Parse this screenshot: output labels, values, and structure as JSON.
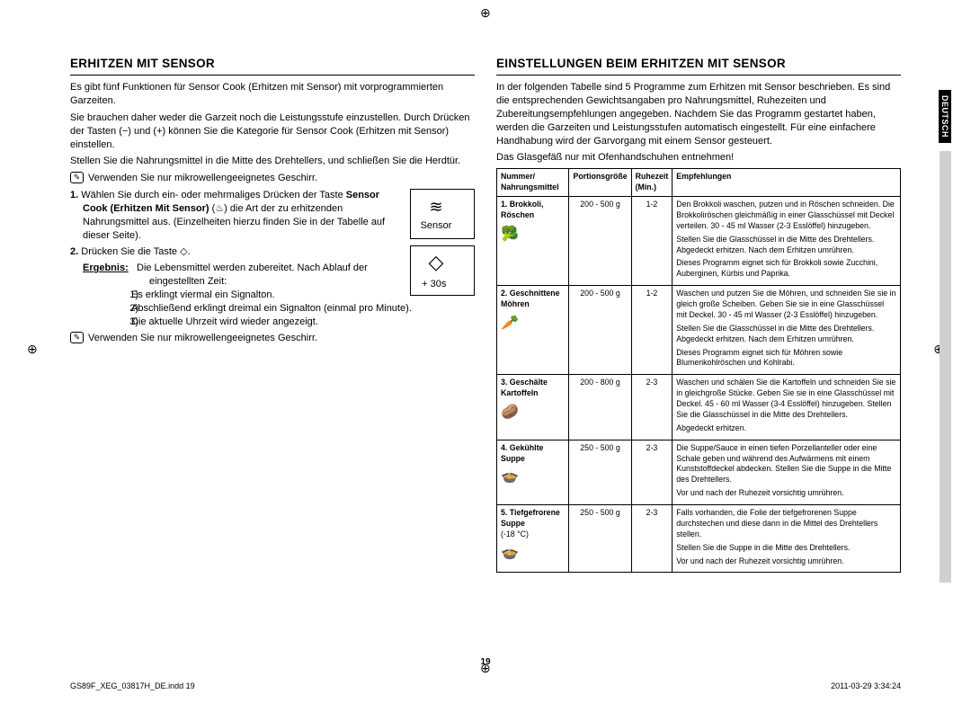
{
  "language_tab": "DEUTSCH",
  "page_number": "19",
  "footer": {
    "file": "GS89F_XEG_03817H_DE.indd   19",
    "stamp": "2011-03-29   3:34:24"
  },
  "left": {
    "heading": "ERHITZEN MIT SENSOR",
    "p1": "Es gibt fünf Funktionen für Sensor Cook (Erhitzen mit Sensor) mit vorprogrammierten Garzeiten.",
    "p2": "Sie brauchen daher weder die Garzeit noch die Leistungsstufe einzustellen. Durch Drücken der Tasten (−) und (+) können Sie die Kategorie für Sensor Cook (Erhitzen mit Sensor) einstellen.",
    "p3": "Stellen Sie die Nahrungsmittel in die Mitte des Drehtellers, und schließen Sie die Herdtür.",
    "note1": "Verwenden Sie nur mikrowellengeeignetes Geschirr.",
    "step1_pre": "Wählen Sie durch ein- oder mehrmaliges Drücken der Taste ",
    "step1_bold": "Sensor Cook (Erhitzen Mit Sensor)",
    "step1_post": " die Art der zu erhitzenden Nahrungsmittel aus. (Einzelheiten hierzu finden Sie in der Tabelle auf dieser Seite).",
    "box1_label": "Sensor",
    "step2": "Drücken Sie die Taste ",
    "result_label": "Ergebnis:",
    "result_l1": "Die Lebensmittel werden zubereitet. Nach Ablauf der eingestellten Zeit:",
    "box2_label": "+ 30s",
    "sub1": "Es erklingt viermal ein Signalton.",
    "sub2": "Abschließend erklingt dreimal ein Signalton (einmal pro Minute).",
    "sub3": "Die aktuelle Uhrzeit wird wieder angezeigt.",
    "note2": "Verwenden Sie nur mikrowellengeeignetes Geschirr."
  },
  "right": {
    "heading": "EINSTELLUNGEN BEIM ERHITZEN MIT SENSOR",
    "p1": "In der folgenden Tabelle sind 5 Programme zum Erhitzen mit Sensor beschrieben. Es sind die entsprechenden Gewichtsangaben pro Nahrungsmittel, Ruhezeiten und Zubereitungsempfehlungen angegeben. Nachdem Sie das Programm gestartet haben, werden die Garzeiten und Leistungsstufen automatisch eingestellt. Für eine einfachere Handhabung wird der Garvorgang mit einem Sensor gesteuert.",
    "p2": "Das Glasgefäß nur mit Ofenhandschuhen entnehmen!",
    "table": {
      "headers": {
        "c1a": "Nummer/",
        "c1b": "Nahrungsmittel",
        "c2": "Portionsgröße",
        "c3a": "Ruhezeit",
        "c3b": "(Min.)",
        "c4": "Empfehlungen"
      },
      "rows": [
        {
          "num": "1.",
          "food": "Brokkoli, Röschen",
          "icon": "🥦",
          "portion": "200 - 500 g",
          "rest": "1-2",
          "rec1": "Den Brokkoli waschen, putzen und in Röschen schneiden. Die Brokkoliröschen gleichmäßig in einer Glasschüssel mit Deckel verteilen. 30 - 45 ml Wasser (2-3 Esslöffel) hinzugeben.",
          "rec2": "Stellen Sie die Glasschüssel in die Mitte des Drehtellers. Abgedeckt erhitzen. Nach dem Erhitzen umrühren.",
          "rec3": "Dieses Programm eignet sich für Brokkoli sowie Zucchini, Auberginen, Kürbis und Paprika."
        },
        {
          "num": "2.",
          "food": "Geschnittene Möhren",
          "icon": "🥕",
          "portion": "200 - 500 g",
          "rest": "1-2",
          "rec1": "Waschen und putzen Sie die Möhren, und schneiden Sie sie in gleich große Scheiben. Geben Sie sie in eine Glasschüssel mit Deckel. 30 - 45 ml Wasser (2-3 Esslöffel) hinzugeben.",
          "rec2": "Stellen Sie die Glasschüssel in die Mitte des Drehtellers. Abgedeckt erhitzen. Nach dem Erhitzen umrühren.",
          "rec3": "Dieses Programm eignet sich für Möhren sowie Blumenkohlröschen und Kohlrabi."
        },
        {
          "num": "3.",
          "food": "Geschälte Kartoffeln",
          "icon": "🥔",
          "portion": "200 - 800 g",
          "rest": "2-3",
          "rec1": "Waschen und schälen Sie die Kartoffeln und schneiden Sie sie in gleichgroße Stücke. Geben Sie sie in eine Glasschüssel mit Deckel. 45 - 60 ml Wasser (3-4 Esslöffel) hinzugeben. Stellen Sie die Glasschüssel in die Mitte des Drehtellers.",
          "rec2": "Abgedeckt erhitzen.",
          "rec3": ""
        },
        {
          "num": "4.",
          "food": "Gekühlte Suppe",
          "icon": "🍲",
          "portion": "250 - 500 g",
          "rest": "2-3",
          "rec1": "Die Suppe/Sauce in einen tiefen Porzellanteller oder eine Schale geben und während des Aufwärmens mit einem Kunststoffdeckel abdecken. Stellen Sie die Suppe in die Mitte des Drehtellers.",
          "rec2": "Vor und nach der Ruhezeit vorsichtig umrühren.",
          "rec3": ""
        },
        {
          "num": "5.",
          "food": "Tiefgefrorene Suppe",
          "extra": "(-18 °C)",
          "icon": "🍲",
          "portion": "250 - 500 g",
          "rest": "2-3",
          "rec1": "Falls vorhanden, die Folie der tiefgefrorenen Suppe durchstechen und diese dann in die Mittel des Drehtellers stellen.",
          "rec2": "Stellen Sie die Suppe in die Mitte des Drehtellers.",
          "rec3": "Vor und nach der Ruhezeit vorsichtig umrühren."
        }
      ]
    }
  }
}
